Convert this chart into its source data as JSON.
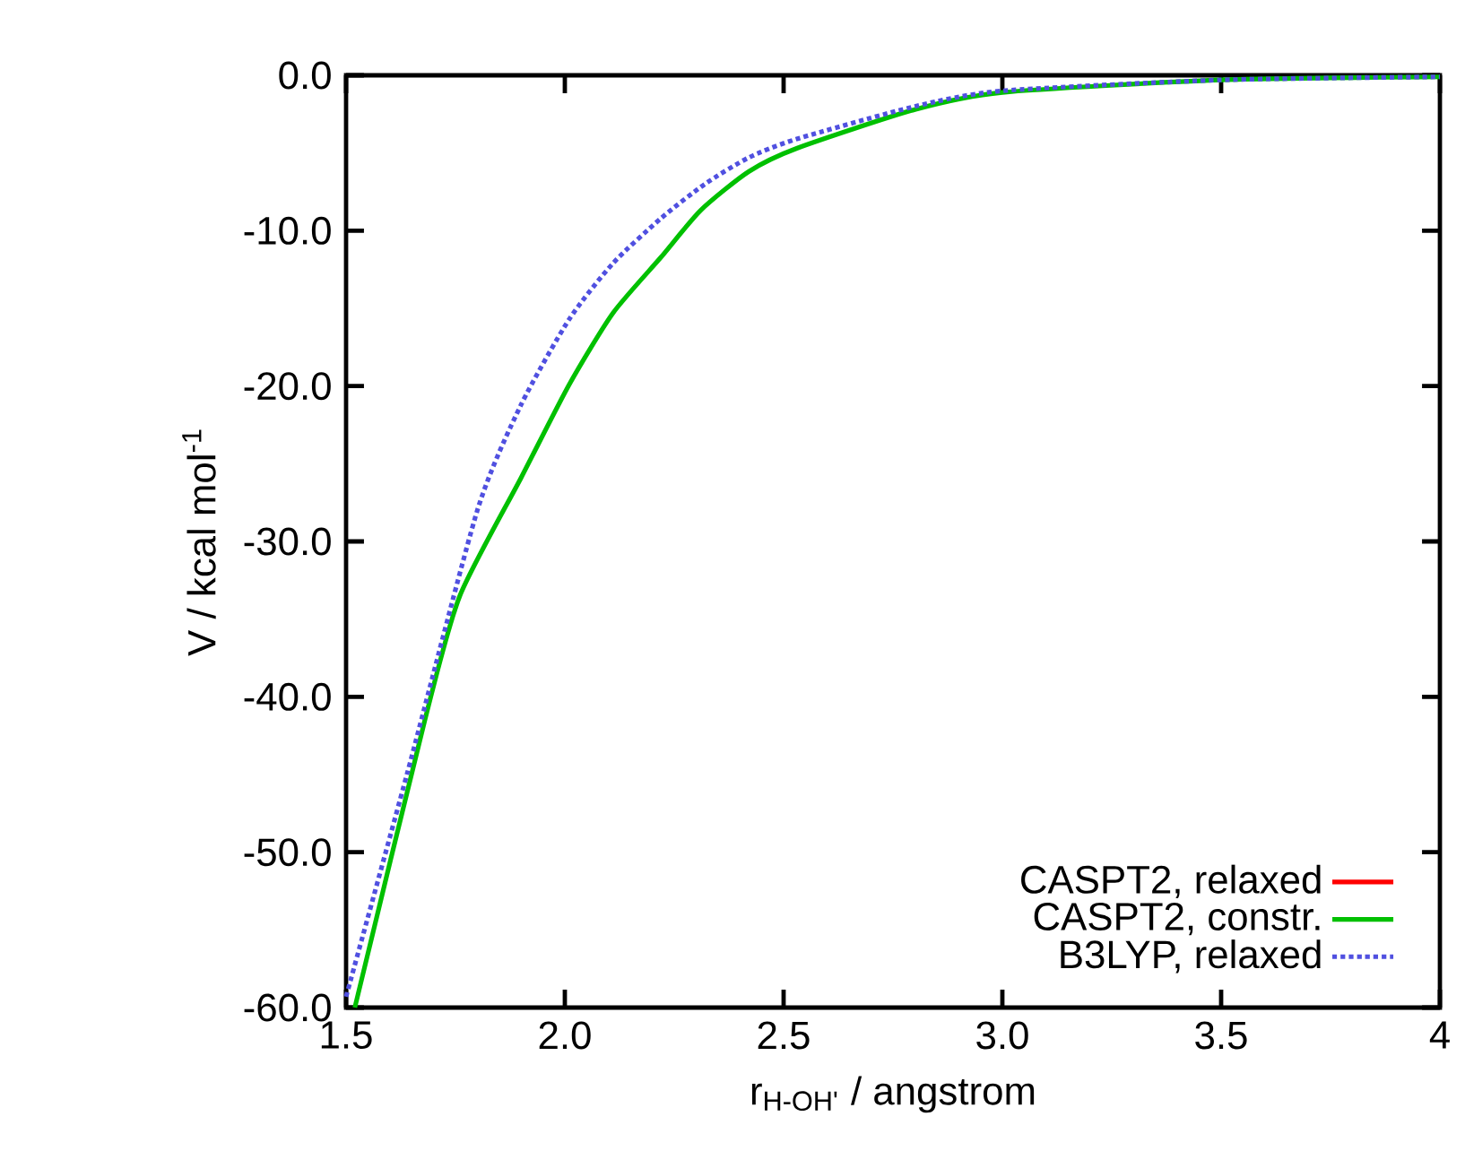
{
  "chart_data": {
    "type": "line",
    "xlabel": "r$_{H-OH'}$ / angstrom",
    "ylabel": "V / kcal mol$^{-1}$",
    "xlim": [
      1.5,
      4.0
    ],
    "ylim": [
      -60,
      0
    ],
    "xticks": [
      {
        "value": 1.5,
        "label": "1.5"
      },
      {
        "value": 2.0,
        "label": "2.0"
      },
      {
        "value": 2.5,
        "label": "2.5"
      },
      {
        "value": 3.0,
        "label": "3.0"
      },
      {
        "value": 3.5,
        "label": "3.5"
      },
      {
        "value": 4.0,
        "label": "4"
      }
    ],
    "yticks": [
      {
        "value": -60,
        "label": "-60.0"
      },
      {
        "value": -50,
        "label": "-50.0"
      },
      {
        "value": -40,
        "label": "-40.0"
      },
      {
        "value": -30,
        "label": "-30.0"
      },
      {
        "value": -20,
        "label": "-20.0"
      },
      {
        "value": -10,
        "label": "-10.0"
      },
      {
        "value": 0,
        "label": "0.0"
      }
    ],
    "legend": "bottom right",
    "grid": false,
    "marker": "none",
    "series": [
      {
        "name": "CASPT2, relaxed",
        "color": "#ff0000",
        "line_style": "solid"
      },
      {
        "name": "CASPT2, constr.",
        "color": "#00c000",
        "line_style": "solid",
        "x": [
          1.52,
          1.68,
          1.76,
          1.9,
          2.01,
          2.11,
          2.22,
          2.31,
          2.42,
          2.53,
          2.8,
          3.0,
          3.5,
          4.0
        ],
        "values": [
          -60,
          -41.5,
          -33.5,
          -25.9,
          -19.9,
          -15.3,
          -11.7,
          -8.7,
          -6.2,
          -4.7,
          -2.2,
          -1.1,
          -0.3,
          -0.1
        ]
      },
      {
        "name": "B3LYP, relaxed",
        "color": "#5050e0",
        "line_style": "dotted",
        "x": [
          1.5,
          1.64,
          1.8,
          1.9,
          2.01,
          2.11,
          2.22,
          2.32,
          2.42,
          2.53,
          2.8,
          3.0,
          3.5,
          4.0
        ],
        "values": [
          -59.3,
          -44.9,
          -28,
          -21.2,
          -15.7,
          -12.1,
          -9.2,
          -7,
          -5.3,
          -4.1,
          -2,
          -1,
          -0.3,
          -0.1
        ]
      }
    ]
  }
}
